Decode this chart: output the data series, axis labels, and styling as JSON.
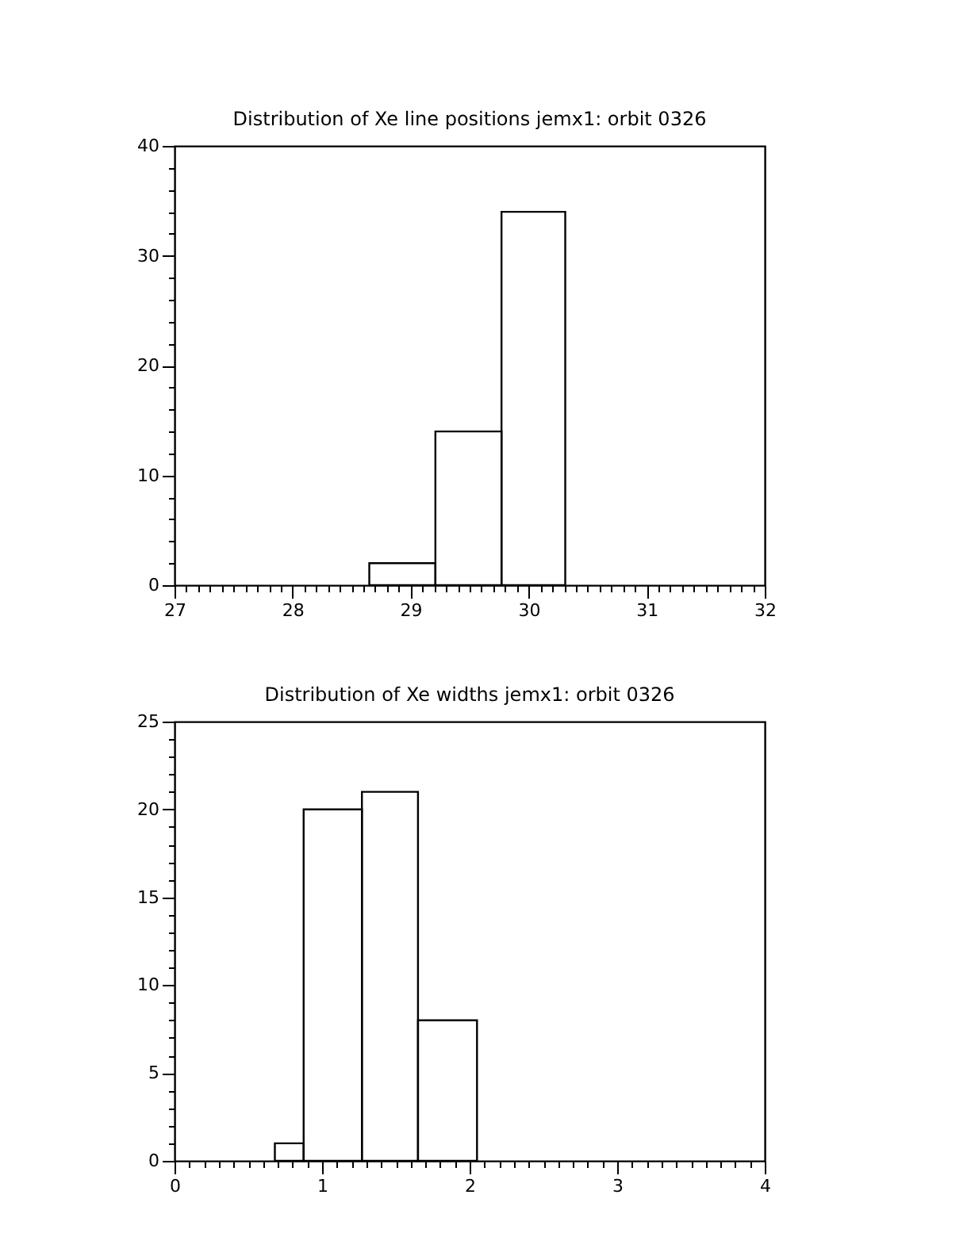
{
  "chart_data": [
    {
      "type": "histogram",
      "title": "Distribution of Xe line positions jemx1: orbit 0326",
      "color": "#000000",
      "grid": false,
      "bins": [
        28.65,
        29.21,
        29.77,
        30.31
      ],
      "values": [
        2,
        14,
        34
      ],
      "xlim": [
        27,
        32
      ],
      "ylim": [
        0,
        40
      ],
      "xticks": [
        27,
        {
          "value": 27.1,
          "label": null
        },
        {
          "value": 27.2,
          "label": null
        },
        {
          "value": 27.3,
          "label": null
        },
        {
          "value": 27.4,
          "label": null
        },
        {
          "value": 27.5,
          "label": null
        },
        {
          "value": 27.6,
          "label": null
        },
        {
          "value": 27.7,
          "label": null
        },
        {
          "value": 27.8,
          "label": null
        },
        {
          "value": 27.9,
          "label": null
        },
        28,
        {
          "value": 28.1,
          "label": null
        },
        {
          "value": 28.2,
          "label": null
        },
        {
          "value": 28.3,
          "label": null
        },
        {
          "value": 28.4,
          "label": null
        },
        {
          "value": 28.5,
          "label": null
        },
        {
          "value": 28.6,
          "label": null
        },
        {
          "value": 28.7,
          "label": null
        },
        {
          "value": 28.8,
          "label": null
        },
        {
          "value": 28.9,
          "label": null
        },
        29,
        {
          "value": 29.1,
          "label": null
        },
        {
          "value": 29.2,
          "label": null
        },
        {
          "value": 29.3,
          "label": null
        },
        {
          "value": 29.4,
          "label": null
        },
        {
          "value": 29.5,
          "label": null
        },
        {
          "value": 29.6,
          "label": null
        },
        {
          "value": 29.7,
          "label": null
        },
        {
          "value": 29.8,
          "label": null
        },
        {
          "value": 29.9,
          "label": null
        },
        30,
        {
          "value": 30.1,
          "label": null
        },
        {
          "value": 30.2,
          "label": null
        },
        {
          "value": 30.3,
          "label": null
        },
        {
          "value": 30.4,
          "label": null
        },
        {
          "value": 30.5,
          "label": null
        },
        {
          "value": 30.6,
          "label": null
        },
        {
          "value": 30.7,
          "label": null
        },
        {
          "value": 30.8,
          "label": null
        },
        {
          "value": 30.9,
          "label": null
        },
        31,
        {
          "value": 31.1,
          "label": null
        },
        {
          "value": 31.2,
          "label": null
        },
        {
          "value": 31.3,
          "label": null
        },
        {
          "value": 31.4,
          "label": null
        },
        {
          "value": 31.5,
          "label": null
        },
        {
          "value": 31.6,
          "label": null
        },
        {
          "value": 31.7,
          "label": null
        },
        {
          "value": 31.8,
          "label": null
        },
        {
          "value": 31.9,
          "label": null
        },
        32
      ],
      "yticks": [
        0,
        {
          "value": 2,
          "label": null
        },
        {
          "value": 4,
          "label": null
        },
        {
          "value": 6,
          "label": null
        },
        {
          "value": 8,
          "label": null
        },
        10,
        {
          "value": 12,
          "label": null
        },
        {
          "value": 14,
          "label": null
        },
        {
          "value": 16,
          "label": null
        },
        {
          "value": 18,
          "label": null
        },
        20,
        {
          "value": 22,
          "label": null
        },
        {
          "value": 24,
          "label": null
        },
        {
          "value": 26,
          "label": null
        },
        {
          "value": 28,
          "label": null
        },
        30,
        {
          "value": 32,
          "label": null
        },
        {
          "value": 34,
          "label": null
        },
        {
          "value": 36,
          "label": null
        },
        {
          "value": 38,
          "label": null
        },
        40
      ]
    },
    {
      "type": "histogram",
      "title": "Distribution of Xe widths jemx1: orbit 0326",
      "color": "#000000",
      "grid": false,
      "bins": [
        0.68,
        0.875,
        1.27,
        1.65,
        2.05
      ],
      "values": [
        1,
        20,
        21,
        8
      ],
      "xlim": [
        0,
        4
      ],
      "ylim": [
        0,
        25
      ],
      "xticks": [
        0,
        {
          "value": 0.1,
          "label": null
        },
        {
          "value": 0.2,
          "label": null
        },
        {
          "value": 0.3,
          "label": null
        },
        {
          "value": 0.4,
          "label": null
        },
        {
          "value": 0.5,
          "label": null
        },
        {
          "value": 0.6,
          "label": null
        },
        {
          "value": 0.7,
          "label": null
        },
        {
          "value": 0.8,
          "label": null
        },
        {
          "value": 0.9,
          "label": null
        },
        1,
        {
          "value": 1.1,
          "label": null
        },
        {
          "value": 1.2,
          "label": null
        },
        {
          "value": 1.3,
          "label": null
        },
        {
          "value": 1.4,
          "label": null
        },
        {
          "value": 1.5,
          "label": null
        },
        {
          "value": 1.6,
          "label": null
        },
        {
          "value": 1.7,
          "label": null
        },
        {
          "value": 1.8,
          "label": null
        },
        {
          "value": 1.9,
          "label": null
        },
        2,
        {
          "value": 2.1,
          "label": null
        },
        {
          "value": 2.2,
          "label": null
        },
        {
          "value": 2.3,
          "label": null
        },
        {
          "value": 2.4,
          "label": null
        },
        {
          "value": 2.5,
          "label": null
        },
        {
          "value": 2.6,
          "label": null
        },
        {
          "value": 2.7,
          "label": null
        },
        {
          "value": 2.8,
          "label": null
        },
        {
          "value": 2.9,
          "label": null
        },
        3,
        {
          "value": 3.1,
          "label": null
        },
        {
          "value": 3.2,
          "label": null
        },
        {
          "value": 3.3,
          "label": null
        },
        {
          "value": 3.4,
          "label": null
        },
        {
          "value": 3.5,
          "label": null
        },
        {
          "value": 3.6,
          "label": null
        },
        {
          "value": 3.7,
          "label": null
        },
        {
          "value": 3.8,
          "label": null
        },
        {
          "value": 3.9,
          "label": null
        },
        4
      ],
      "yticks": [
        0,
        {
          "value": 1,
          "label": null
        },
        {
          "value": 2,
          "label": null
        },
        {
          "value": 3,
          "label": null
        },
        {
          "value": 4,
          "label": null
        },
        5,
        {
          "value": 6,
          "label": null
        },
        {
          "value": 7,
          "label": null
        },
        {
          "value": 8,
          "label": null
        },
        {
          "value": 9,
          "label": null
        },
        10,
        {
          "value": 11,
          "label": null
        },
        {
          "value": 12,
          "label": null
        },
        {
          "value": 13,
          "label": null
        },
        {
          "value": 14,
          "label": null
        },
        15,
        {
          "value": 16,
          "label": null
        },
        {
          "value": 17,
          "label": null
        },
        {
          "value": 18,
          "label": null
        },
        {
          "value": 19,
          "label": null
        },
        20,
        {
          "value": 21,
          "label": null
        },
        {
          "value": 22,
          "label": null
        },
        {
          "value": 23,
          "label": null
        },
        {
          "value": 24,
          "label": null
        },
        25
      ]
    }
  ]
}
